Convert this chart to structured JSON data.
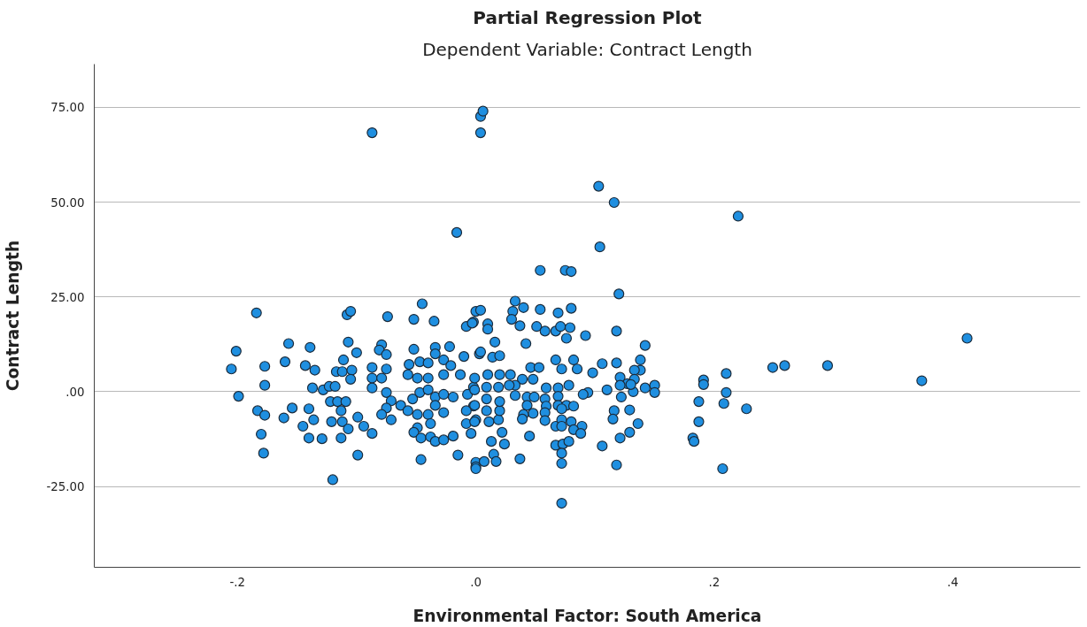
{
  "chart_data": {
    "type": "scatter",
    "title": "Partial Regression Plot",
    "subtitle": "Dependent Variable: Contract Length",
    "xlabel": "Environmental Factor: South America",
    "ylabel": "Contract Length",
    "xlim": [
      -0.32,
      0.507
    ],
    "ylim": [
      -46.3,
      86.4
    ],
    "xticks": [
      {
        "value": -0.2,
        "label": "-.2"
      },
      {
        "value": 0,
        "label": ".0"
      },
      {
        "value": 0.2,
        "label": ".2"
      },
      {
        "value": 0.4,
        "label": ".4"
      }
    ],
    "yticks": [
      {
        "value": -25,
        "label": "-25.00"
      },
      {
        "value": 0,
        "label": ".00"
      },
      {
        "value": 25,
        "label": "25.00"
      },
      {
        "value": 50,
        "label": "50.00"
      },
      {
        "value": 75,
        "label": "75.00"
      }
    ],
    "grid": "y",
    "marker": "circle",
    "series": [
      {
        "color": "#1f8fe0",
        "x": [
          0.004,
          0.006,
          0.004,
          -0.087,
          -0.016,
          0.103,
          0.116,
          0.22,
          0.104,
          0.054,
          0.075,
          0.08,
          0.12,
          -0.184,
          0.412,
          0.374,
          0.295,
          0.259,
          0.249,
          0.227,
          0.21,
          0.21,
          0.208,
          0.207,
          0.191,
          0.191,
          0.187,
          0.187,
          0.182,
          0.183,
          0.072,
          -0.12,
          -0.201,
          -0.205,
          -0.199,
          -0.177,
          -0.177,
          -0.183,
          -0.177,
          -0.18,
          -0.178,
          -0.157,
          -0.16,
          -0.139,
          -0.143,
          -0.135,
          -0.154,
          -0.161,
          -0.137,
          -0.128,
          -0.123,
          -0.118,
          -0.122,
          -0.14,
          -0.136,
          -0.145,
          -0.14,
          -0.129,
          -0.121,
          -0.113,
          -0.116,
          -0.109,
          -0.113,
          -0.112,
          -0.107,
          -0.117,
          -0.112,
          -0.104,
          -0.105,
          -0.111,
          -0.107,
          -0.1,
          -0.108,
          -0.105,
          -0.099,
          -0.094,
          -0.087,
          -0.099,
          -0.087,
          -0.087,
          -0.079,
          -0.081,
          -0.075,
          -0.075,
          -0.079,
          -0.087,
          -0.075,
          -0.071,
          -0.075,
          -0.079,
          -0.071,
          -0.074,
          -0.063,
          -0.056,
          -0.057,
          -0.052,
          -0.052,
          -0.035,
          -0.045,
          -0.047,
          -0.04,
          -0.034,
          -0.034,
          -0.022,
          -0.027,
          -0.021,
          -0.013,
          -0.027,
          -0.04,
          -0.049,
          -0.047,
          -0.04,
          -0.034,
          -0.027,
          -0.019,
          -0.053,
          -0.049,
          -0.057,
          -0.04,
          -0.034,
          -0.027,
          -0.038,
          -0.049,
          -0.052,
          -0.046,
          -0.038,
          -0.034,
          -0.027,
          -0.019,
          -0.046,
          -0.015,
          -0.01,
          -0.008,
          -0.002,
          0.0,
          -0.002,
          -0.007,
          -0.002,
          -0.008,
          -0.004,
          0.0,
          0.0,
          0.0,
          0.003,
          0.033,
          0.031,
          0.04,
          0.054,
          0.069,
          0.08,
          0.004,
          -0.003,
          0.01,
          0.01,
          0.03,
          0.037,
          0.051,
          0.058,
          0.067,
          0.071,
          0.079,
          0.076,
          0.092,
          0.118,
          0.142,
          0.042,
          0.016,
          0.004,
          0.014,
          0.02,
          0.067,
          0.082,
          0.085,
          0.072,
          0.046,
          0.053,
          0.098,
          0.106,
          0.118,
          0.138,
          0.138,
          0.133,
          0.121,
          0.133,
          0.127,
          0.121,
          0.142,
          0.15,
          0.15,
          0.132,
          0.11,
          0.094,
          0.09,
          0.078,
          0.069,
          0.069,
          0.059,
          0.048,
          0.039,
          0.029,
          0.033,
          0.043,
          0.043,
          0.049,
          0.058,
          0.059,
          0.069,
          0.076,
          0.082,
          0.072,
          0.048,
          0.04,
          0.039,
          0.058,
          0.058,
          0.067,
          0.072,
          0.08,
          0.089,
          0.082,
          0.088,
          0.072,
          0.116,
          0.115,
          0.129,
          0.136,
          0.129,
          0.121,
          0.106,
          0.118,
          0.067,
          0.073,
          0.078,
          0.072,
          0.072,
          0.045,
          0.037,
          0.015,
          0.017,
          0.007,
          0.0,
          0.024,
          0.022,
          0.013,
          -0.001,
          0.011,
          0.019,
          0.009,
          -0.008,
          -0.001,
          0.02,
          0.02,
          0.009,
          -0.001,
          0.009,
          0.019,
          0.02,
          0.01,
          -0.001,
          0.033,
          0.028,
          0.13,
          0.122
        ],
        "values": [
          72.6,
          74.0,
          68.3,
          68.3,
          42.0,
          54.2,
          49.9,
          46.3,
          38.2,
          32.0,
          32.0,
          31.7,
          25.8,
          20.8,
          14.1,
          2.9,
          6.9,
          6.9,
          6.4,
          -4.5,
          -0.2,
          4.8,
          -3.1,
          -20.3,
          3.1,
          1.9,
          -7.9,
          -2.6,
          -12.2,
          -13.1,
          -29.4,
          -23.2,
          10.7,
          6.0,
          -1.2,
          6.7,
          1.7,
          -5.0,
          -6.2,
          -11.2,
          -16.2,
          12.7,
          7.9,
          11.7,
          6.9,
          5.7,
          -4.3,
          -6.9,
          1.0,
          0.5,
          1.4,
          1.4,
          -2.6,
          -4.5,
          -7.4,
          -9.1,
          -12.2,
          -12.4,
          -7.9,
          -12.2,
          -2.6,
          -2.6,
          -5.0,
          -7.9,
          -9.8,
          5.3,
          5.3,
          5.7,
          3.3,
          8.4,
          13.1,
          10.3,
          20.3,
          21.2,
          -6.7,
          -9.1,
          -11.0,
          -16.7,
          6.4,
          3.6,
          12.4,
          11.0,
          9.8,
          6.0,
          3.6,
          1.0,
          -0.2,
          -2.4,
          -4.3,
          -6.0,
          -7.4,
          19.8,
          -3.6,
          7.2,
          4.5,
          11.2,
          19.1,
          18.6,
          23.2,
          7.9,
          7.6,
          11.7,
          10.0,
          11.9,
          8.4,
          6.9,
          4.5,
          4.5,
          3.6,
          3.6,
          -0.2,
          0.5,
          -1.4,
          -0.7,
          -1.4,
          -1.9,
          -6.0,
          -5.0,
          -6.0,
          -3.6,
          -5.5,
          -8.4,
          -9.5,
          -10.7,
          -12.2,
          -11.9,
          -13.1,
          -12.7,
          -11.7,
          -17.9,
          -16.7,
          9.3,
          17.2,
          18.4,
          21.2,
          1.2,
          -0.7,
          -3.8,
          -8.4,
          -11.0,
          -7.4,
          -18.6,
          -19.8,
          10.0,
          23.9,
          21.2,
          22.2,
          21.7,
          20.8,
          22.0,
          21.5,
          18.1,
          17.9,
          16.5,
          19.1,
          17.4,
          17.2,
          16.0,
          16.0,
          17.2,
          16.9,
          14.1,
          14.8,
          16.0,
          12.2,
          12.7,
          13.1,
          10.5,
          9.1,
          9.5,
          8.4,
          8.4,
          6.0,
          6.0,
          6.4,
          6.4,
          5.0,
          7.4,
          7.6,
          8.4,
          5.7,
          5.7,
          3.8,
          3.3,
          2.1,
          1.7,
          1.0,
          1.7,
          -0.2,
          0.0,
          0.5,
          -0.2,
          -0.7,
          1.7,
          1.0,
          -1.2,
          1.0,
          3.3,
          3.3,
          4.5,
          -1.0,
          -1.4,
          -3.6,
          -1.4,
          -1.9,
          -3.8,
          -3.6,
          -3.6,
          -3.8,
          -4.5,
          -5.7,
          -6.0,
          -7.2,
          -5.5,
          -7.6,
          -9.1,
          -7.4,
          -7.9,
          -9.1,
          -10.0,
          -11.0,
          -9.1,
          -5.0,
          -7.2,
          -4.8,
          -8.4,
          -10.7,
          -12.2,
          -14.3,
          -19.3,
          -14.1,
          -13.8,
          -13.1,
          -16.2,
          -18.9,
          -11.7,
          -17.7,
          -16.5,
          -18.4,
          -18.4,
          -20.3,
          -13.8,
          -10.7,
          -13.1,
          -7.9,
          -7.9,
          -7.4,
          -5.0,
          -5.0,
          -3.6,
          -5.0,
          -2.6,
          -1.9,
          0.5,
          1.2,
          1.2,
          4.5,
          4.5,
          3.6,
          1.7,
          1.7,
          1.9,
          -1.4
        ]
      }
    ]
  }
}
